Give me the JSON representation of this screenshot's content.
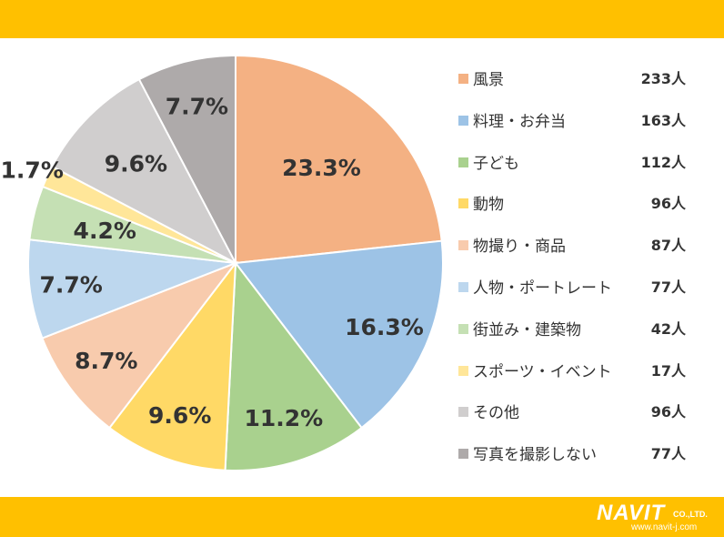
{
  "chart_data": {
    "type": "pie",
    "categories": [
      "風景",
      "料理・お弁当",
      "子ども",
      "動物",
      "物撮り・商品",
      "人物・ポートレート",
      "街並み・建築物",
      "スポーツ・イベント",
      "その他",
      "写真を撮影しない"
    ],
    "counts": [
      "233人",
      "163人",
      "112人",
      "96人",
      "87人",
      "77人",
      "42人",
      "17人",
      "96人",
      "77人"
    ],
    "values": [
      23.3,
      16.3,
      11.2,
      9.6,
      8.7,
      7.7,
      4.2,
      1.7,
      9.6,
      7.7
    ],
    "data_labels": [
      "23.3%",
      "16.3%",
      "11.2%",
      "9.6%",
      "8.7%",
      "7.7%",
      "4.2%",
      "1.7%",
      "9.6%",
      "7.7%"
    ],
    "colors": [
      "#F4B183",
      "#9DC3E6",
      "#A9D18E",
      "#FFD966",
      "#F8CBAD",
      "#BDD7EE",
      "#C5E0B4",
      "#FFE699",
      "#D0CECE",
      "#AEAAAA"
    ],
    "legend_position": "right"
  },
  "logo": {
    "name": "NAVIT",
    "suffix": "CO.,LTD.",
    "url": "www.navit-j.com"
  },
  "colors": {
    "banner": "#FFC000",
    "label_text": "#333333"
  }
}
